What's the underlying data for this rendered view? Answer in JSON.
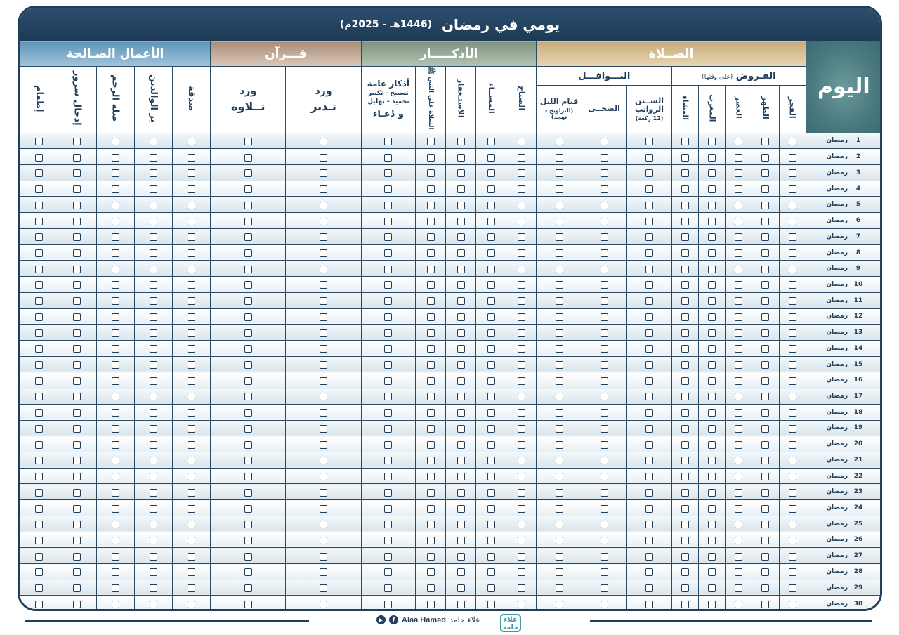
{
  "title": {
    "main": "يومي في رمضان",
    "year": "(1446هـ - 2025م)"
  },
  "day_header": "اليوم",
  "groups": {
    "prayer": "الصــلاة",
    "dhikr": "الأذكـــــار",
    "quran": "قـــرآن",
    "deeds": "الأعمال الصـالحة"
  },
  "subgroups": {
    "fard": "الفـروض",
    "fard_note": "(على وقتها)",
    "nawafil": "النـــوافـــل"
  },
  "columns": {
    "fajr": "الفجر",
    "dhuhr": "الظهر",
    "asr": "العصر",
    "maghrib": "المغرب",
    "isha": "العشاء",
    "sunan_title": "الســنن الرواتب",
    "sunan_note": "(12 ركعة)",
    "duha": "الضحــى",
    "qiyam_title": "قيام الليل",
    "qiyam_note": "(التراويح - تهجد)",
    "morning": "الصباح",
    "evening": "المســاء",
    "istighfar": "الاستـغفار",
    "salat_nabi": "الصلاة على النبي ﷺ",
    "general_title": "أذكار عامة",
    "general_note1": "تسبيح - تكبير",
    "general_note2": "تحميد - تهليل",
    "general_sub": "و دُعـاء",
    "tadabbur_1": "ورد",
    "tadabbur_2": "تـدبر",
    "tilawa_1": "ورد",
    "tilawa_2": "تــلاوة",
    "sadaqa": "صدقة",
    "birr": "بر الوالدين",
    "silat_rahim": "صلة الرحم",
    "idkhal_surur": "إدخال سرور",
    "itaam": "إطعام"
  },
  "day_label": "رمضان",
  "days": [
    "1",
    "2",
    "3",
    "4",
    "5",
    "6",
    "7",
    "8",
    "9",
    "10",
    "11",
    "12",
    "13",
    "14",
    "15",
    "16",
    "17",
    "18",
    "19",
    "20",
    "21",
    "22",
    "23",
    "24",
    "25",
    "26",
    "27",
    "28",
    "29",
    "30"
  ],
  "footer": {
    "credit_ar": "علاء حامد",
    "credit_en": "Alaa Hamed",
    "logo": "علاء حامد"
  },
  "colors": {
    "navy": "#1f3f5c",
    "prayer": "#e3cfa6",
    "dhikr": "#9fb29e",
    "quran": "#c8b4a2",
    "deeds": "#86b3d1",
    "day": "#4a7a80"
  }
}
